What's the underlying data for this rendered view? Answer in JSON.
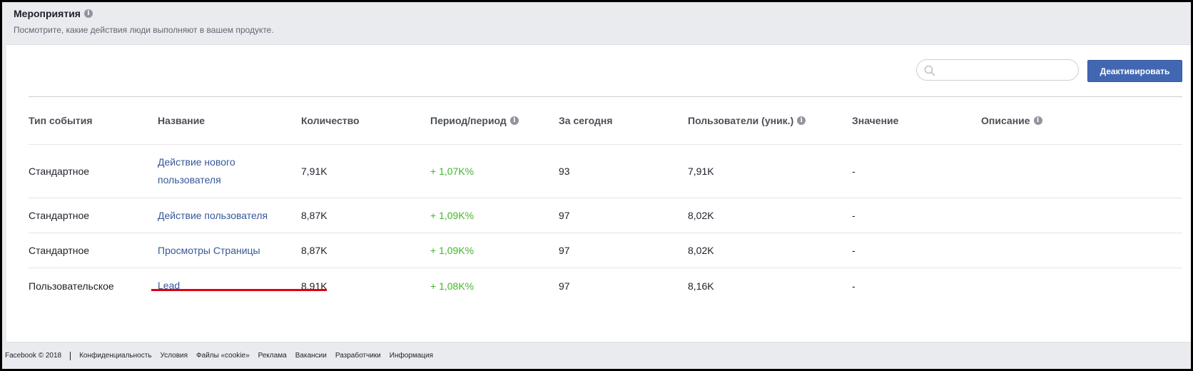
{
  "header": {
    "title": "Мероприятия",
    "subtitle": "Посмотрите, какие действия люди выполняют в вашем продукте."
  },
  "toolbar": {
    "search_placeholder": "",
    "deactivate_label": "Деактивировать"
  },
  "table": {
    "columns": [
      "Тип события",
      "Название",
      "Количество",
      "Период/период",
      "За сегодня",
      "Пользователи (уник.)",
      "Значение",
      "Описание"
    ],
    "rows": [
      {
        "type": "Стандартное",
        "name": "Действие нового пользователя",
        "count": "7,91K",
        "period": "+ 1,07K%",
        "today": "93",
        "users": "7,91K",
        "value": "-",
        "description": ""
      },
      {
        "type": "Стандартное",
        "name": "Действие пользователя",
        "count": "8,87K",
        "period": "+ 1,09K%",
        "today": "97",
        "users": "8,02K",
        "value": "-",
        "description": ""
      },
      {
        "type": "Стандартное",
        "name": "Просмотры Страницы",
        "count": "8,87K",
        "period": "+ 1,09K%",
        "today": "97",
        "users": "8,02K",
        "value": "-",
        "description": ""
      },
      {
        "type": "Пользовательское",
        "name": "Lead",
        "count": "8,91K",
        "period": "+ 1,08K%",
        "today": "97",
        "users": "8,16K",
        "value": "-",
        "description": ""
      }
    ]
  },
  "footer": {
    "copyright": "Facebook © 2018",
    "links": [
      "Конфиденциальность",
      "Условия",
      "Файлы «cookie»",
      "Реклама",
      "Вакансии",
      "Разработчики",
      "Информация"
    ]
  },
  "colors": {
    "accent": "#4267b2",
    "link": "#365899",
    "positive": "#42b72a",
    "highlight": "#e3000f"
  }
}
